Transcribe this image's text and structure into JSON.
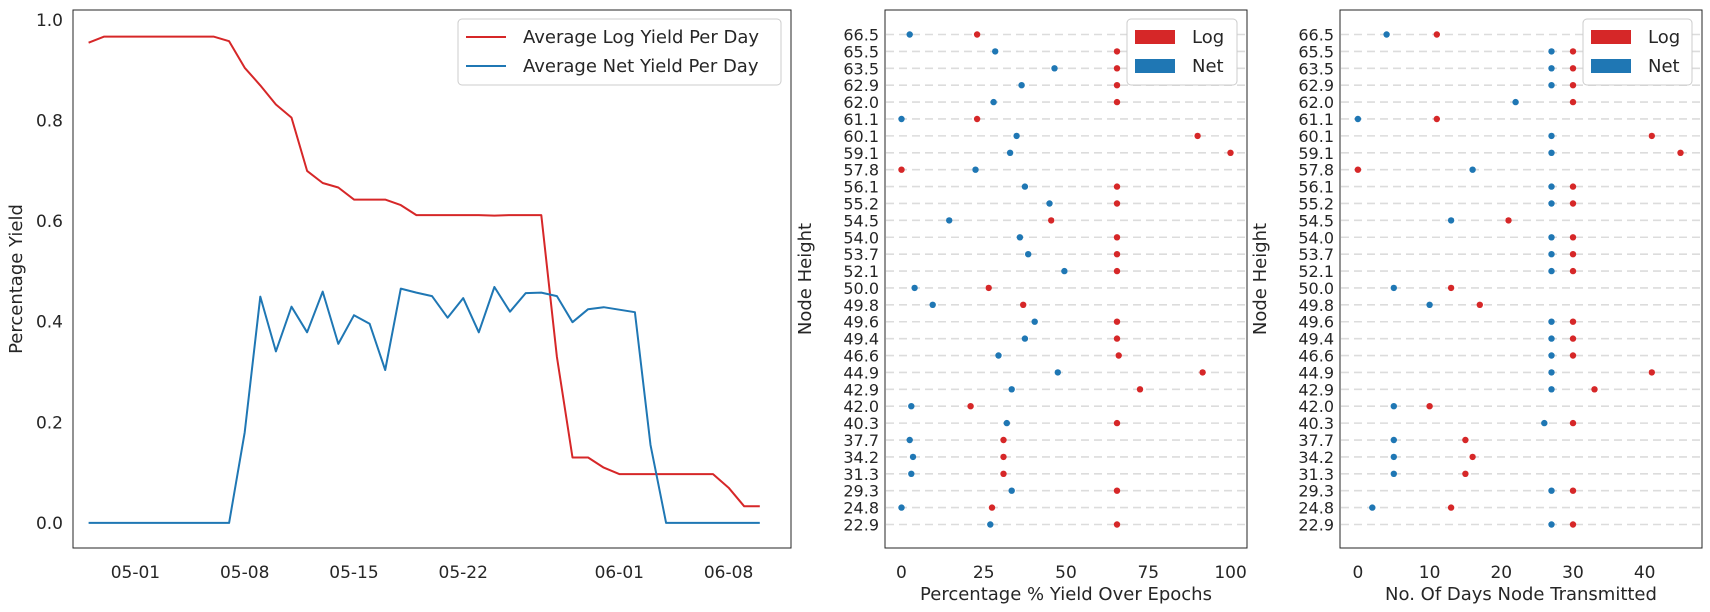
{
  "chart_data": [
    {
      "type": "line",
      "title": "",
      "xlabel": "",
      "ylabel": "Percentage Yield",
      "ylim": [
        -0.05,
        1.02
      ],
      "yticks": [
        "0.0",
        "0.2",
        "0.4",
        "0.6",
        "0.8",
        "1.0"
      ],
      "xticks": [
        "05-01",
        "05-08",
        "05-15",
        "05-22",
        "06-01",
        "06-08"
      ],
      "xtick_days": [
        3,
        10,
        17,
        24,
        34,
        41
      ],
      "x_day_range": [
        -1,
        45
      ],
      "x_days": [
        0,
        1,
        2,
        3,
        4,
        5,
        6,
        7,
        8,
        9,
        10,
        11,
        12,
        13,
        14,
        15,
        16,
        17,
        18,
        19,
        20,
        21,
        22,
        23,
        24,
        25,
        26,
        27,
        28,
        29,
        30,
        31,
        32,
        33,
        34,
        35,
        36,
        37,
        38,
        39,
        40,
        41,
        42,
        43
      ],
      "series": [
        {
          "name": "Average Log Yield Per Day",
          "color": "#d62728",
          "values": [
            0.955,
            0.967,
            0.967,
            0.967,
            0.967,
            0.967,
            0.967,
            0.967,
            0.967,
            0.958,
            0.905,
            0.87,
            0.832,
            0.806,
            0.7,
            0.676,
            0.667,
            0.643,
            0.643,
            0.643,
            0.632,
            0.612,
            0.612,
            0.612,
            0.612,
            0.612,
            0.611,
            0.612,
            0.612,
            0.612,
            0.33,
            0.13,
            0.13,
            0.11,
            0.097,
            0.097,
            0.097,
            0.097,
            0.097,
            0.097,
            0.097,
            0.07,
            0.033,
            0.033
          ]
        },
        {
          "name": "Average Net Yield Per Day",
          "color": "#1f77b4",
          "values": [
            0,
            0,
            0,
            0,
            0,
            0,
            0,
            0,
            0,
            0,
            0.18,
            0.45,
            0.341,
            0.43,
            0.379,
            0.46,
            0.356,
            0.413,
            0.396,
            0.304,
            0.466,
            0.458,
            0.451,
            0.408,
            0.447,
            0.379,
            0.469,
            0.42,
            0.457,
            0.458,
            0.451,
            0.399,
            0.425,
            0.429,
            0.424,
            0.419,
            0.155,
            0,
            0,
            0,
            0,
            0,
            0,
            0
          ]
        }
      ],
      "legend": "top-right"
    },
    {
      "type": "scatter",
      "title": "",
      "xlabel": "Percentage % Yield Over Epochs",
      "ylabel": "Node Height",
      "xlim": [
        -5,
        105
      ],
      "xticks": [
        0,
        25,
        50,
        75,
        100
      ],
      "categories": [
        "66.5",
        "65.5",
        "63.5",
        "62.9",
        "62.0",
        "61.1",
        "60.1",
        "59.1",
        "57.8",
        "56.1",
        "55.2",
        "54.5",
        "54.0",
        "53.7",
        "52.1",
        "50.0",
        "49.8",
        "49.6",
        "49.4",
        "46.6",
        "44.9",
        "42.9",
        "42.0",
        "40.3",
        "37.7",
        "34.2",
        "31.3",
        "29.3",
        "24.8",
        "22.9"
      ],
      "series": [
        {
          "name": "Log",
          "color": "#d62728",
          "values": [
            23,
            65.5,
            65.5,
            65.5,
            65.5,
            23,
            90,
            100,
            0,
            65.5,
            65.5,
            45.5,
            65.5,
            65.5,
            65.5,
            26.5,
            37,
            65.5,
            65.5,
            66,
            91.5,
            72.5,
            21,
            65.5,
            31,
            31,
            31,
            65.5,
            27.5,
            65.5
          ]
        },
        {
          "name": "Net",
          "color": "#1f77b4",
          "values": [
            2.5,
            28.5,
            46.5,
            36.5,
            28,
            0,
            35,
            33,
            22.5,
            37.5,
            45,
            14.5,
            36,
            38.5,
            49.5,
            4,
            9.5,
            40.5,
            37.5,
            29.5,
            47.5,
            33.5,
            3,
            32,
            2.5,
            3.5,
            3,
            33.5,
            0,
            27
          ]
        }
      ],
      "legend": "top-right"
    },
    {
      "type": "scatter",
      "title": "",
      "xlabel": "No. Of Days Node Transmitted",
      "ylabel": "Node Height",
      "xlim": [
        -2.5,
        48
      ],
      "xticks": [
        0,
        10,
        20,
        30,
        40
      ],
      "categories": [
        "66.5",
        "65.5",
        "63.5",
        "62.9",
        "62.0",
        "61.1",
        "60.1",
        "59.1",
        "57.8",
        "56.1",
        "55.2",
        "54.5",
        "54.0",
        "53.7",
        "52.1",
        "50.0",
        "49.8",
        "49.6",
        "49.4",
        "46.6",
        "44.9",
        "42.9",
        "42.0",
        "40.3",
        "37.7",
        "34.2",
        "31.3",
        "29.3",
        "24.8",
        "22.9"
      ],
      "series": [
        {
          "name": "Log",
          "color": "#d62728",
          "values": [
            11,
            30,
            30,
            30,
            30,
            11,
            41,
            45,
            0,
            30,
            30,
            21,
            30,
            30,
            30,
            13,
            17,
            30,
            30,
            30,
            41,
            33,
            10,
            30,
            15,
            16,
            15,
            30,
            13,
            30
          ]
        },
        {
          "name": "Net",
          "color": "#1f77b4",
          "values": [
            4,
            27,
            27,
            27,
            22,
            0,
            27,
            27,
            16,
            27,
            27,
            13,
            27,
            27,
            27,
            5,
            10,
            27,
            27,
            27,
            27,
            27,
            5,
            26,
            5,
            5,
            5,
            27,
            2,
            27
          ]
        }
      ],
      "legend": "top-right"
    }
  ]
}
